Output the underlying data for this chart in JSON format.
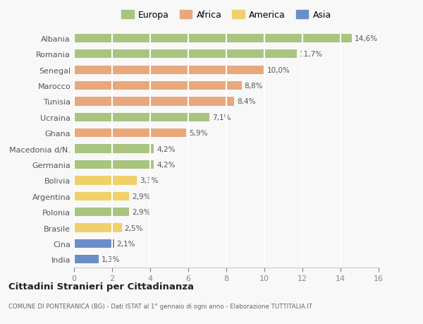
{
  "categories": [
    "Albania",
    "Romania",
    "Senegal",
    "Marocco",
    "Tunisia",
    "Ucraina",
    "Ghana",
    "Macedonia d/N.",
    "Germania",
    "Bolivia",
    "Argentina",
    "Polonia",
    "Brasile",
    "Cina",
    "India"
  ],
  "values": [
    14.6,
    11.7,
    10.0,
    8.8,
    8.4,
    7.1,
    5.9,
    4.2,
    4.2,
    3.3,
    2.9,
    2.9,
    2.5,
    2.1,
    1.3
  ],
  "labels": [
    "14,6%",
    "11,7%",
    "10,0%",
    "8,8%",
    "8,4%",
    "7,1%",
    "5,9%",
    "4,2%",
    "4,2%",
    "3,3%",
    "2,9%",
    "2,9%",
    "2,5%",
    "2,1%",
    "1,3%"
  ],
  "continent": [
    "Europa",
    "Europa",
    "Africa",
    "Africa",
    "Africa",
    "Europa",
    "Africa",
    "Europa",
    "Europa",
    "America",
    "America",
    "Europa",
    "America",
    "Asia",
    "Asia"
  ],
  "colors": {
    "Europa": "#a8c47e",
    "Africa": "#e8a87c",
    "America": "#f0d06a",
    "Asia": "#6a8fc8"
  },
  "legend_labels": [
    "Europa",
    "Africa",
    "America",
    "Asia"
  ],
  "legend_colors": [
    "#a8c47e",
    "#e8a87c",
    "#f0d06a",
    "#6a8fc8"
  ],
  "title": "Cittadini Stranieri per Cittadinanza",
  "subtitle": "COMUNE DI PONTERANICA (BG) - Dati ISTAT al 1° gennaio di ogni anno - Elaborazione TUTTITALIA.IT",
  "xlim": [
    0,
    16
  ],
  "xticks": [
    0,
    2,
    4,
    6,
    8,
    10,
    12,
    14,
    16
  ],
  "background_color": "#f8f8f8",
  "grid_color": "#ffffff",
  "bar_height": 0.55
}
